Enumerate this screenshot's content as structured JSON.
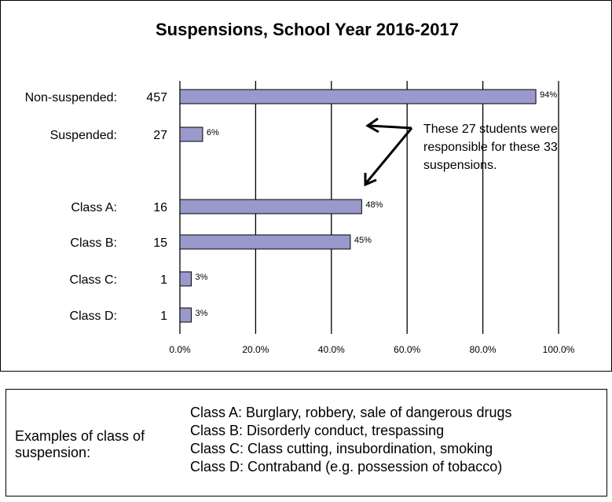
{
  "chart_data": {
    "type": "bar",
    "orientation": "horizontal",
    "title": "Suspensions, School Year 2016-2017",
    "rows": [
      {
        "label": "Non-suspended:",
        "count": "457",
        "value": 94,
        "value_label": "94%"
      },
      {
        "label": "Suspended:",
        "count": "27",
        "value": 6,
        "value_label": "6%"
      },
      {
        "label": "Class A:",
        "count": "16",
        "value": 48,
        "value_label": "48%"
      },
      {
        "label": "Class B:",
        "count": "15",
        "value": 45,
        "value_label": "45%"
      },
      {
        "label": "Class C:",
        "count": "1",
        "value": 3,
        "value_label": "3%"
      },
      {
        "label": "Class D:",
        "count": "1",
        "value": 3,
        "value_label": "3%"
      }
    ],
    "xlim": [
      0,
      100
    ],
    "x_ticks": [
      "0.0%",
      "20.0%",
      "40.0%",
      "60.0%",
      "80.0%",
      "100.0%"
    ],
    "grid": "vertical",
    "bar_color": "#9999cc",
    "annotation": {
      "lines": [
        "These 27 students were",
        "responsible for these 33",
        "suspensions."
      ]
    }
  },
  "legend": {
    "heading": "Examples of class of suspension:",
    "items": [
      "Class A: Burglary, robbery, sale of dangerous drugs",
      "Class B: Disorderly conduct, trespassing",
      "Class C: Class cutting, insubordination, smoking",
      "Class D: Contraband (e.g. possession of tobacco)"
    ]
  }
}
